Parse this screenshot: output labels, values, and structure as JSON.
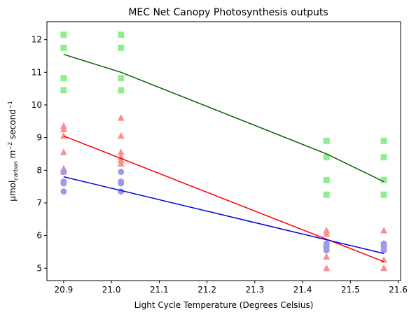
{
  "chart_data": {
    "type": "scatter",
    "title": "MEC Net Canopy Photosynthesis outputs",
    "xlabel": "Light Cycle Temperature (Degrees Celsius)",
    "ylabel": {
      "prefix": "μmol",
      "sub1": "carbon",
      "mid": " m",
      "sup1": "−2",
      "mid2": " second",
      "sup2": "−1"
    },
    "xlim": [
      20.865,
      21.605
    ],
    "ylim": [
      4.62,
      12.55
    ],
    "xticks": [
      "20.9",
      "21.0",
      "21.1",
      "21.2",
      "21.3",
      "21.4",
      "21.5",
      "21.6"
    ],
    "yticks": [
      "5",
      "6",
      "7",
      "8",
      "9",
      "10",
      "11",
      "12"
    ],
    "grid": false,
    "legend": "none",
    "series": [
      {
        "marker": "square",
        "color": "#90ee90",
        "line_color": "#006400",
        "points": [
          [
            20.9,
            12.15
          ],
          [
            20.9,
            11.75
          ],
          [
            20.9,
            10.82
          ],
          [
            20.9,
            10.45
          ],
          [
            21.02,
            12.15
          ],
          [
            21.02,
            11.75
          ],
          [
            21.02,
            10.82
          ],
          [
            21.02,
            10.45
          ],
          [
            21.45,
            8.9
          ],
          [
            21.45,
            8.4
          ],
          [
            21.45,
            7.7
          ],
          [
            21.45,
            7.25
          ],
          [
            21.57,
            8.9
          ],
          [
            21.57,
            8.4
          ],
          [
            21.57,
            7.7
          ],
          [
            21.57,
            7.25
          ]
        ],
        "line": [
          [
            20.9,
            11.55
          ],
          [
            21.02,
            11.0
          ],
          [
            21.45,
            8.5
          ],
          [
            21.57,
            7.65
          ]
        ]
      },
      {
        "marker": "triangle",
        "color": "#f89090",
        "line_color": "#ff0000",
        "points": [
          [
            20.9,
            9.35
          ],
          [
            20.9,
            9.25
          ],
          [
            20.9,
            9.05
          ],
          [
            20.9,
            8.55
          ],
          [
            20.9,
            8.05
          ],
          [
            20.9,
            7.95
          ],
          [
            21.02,
            9.6
          ],
          [
            21.02,
            9.05
          ],
          [
            21.02,
            8.55
          ],
          [
            21.02,
            8.4
          ],
          [
            21.02,
            8.3
          ],
          [
            21.02,
            8.2
          ],
          [
            21.45,
            6.15
          ],
          [
            21.45,
            6.05
          ],
          [
            21.45,
            5.75
          ],
          [
            21.45,
            5.35
          ],
          [
            21.45,
            5.0
          ],
          [
            21.57,
            6.15
          ],
          [
            21.57,
            5.75
          ],
          [
            21.57,
            5.25
          ],
          [
            21.57,
            5.0
          ]
        ],
        "line": [
          [
            20.9,
            9.05
          ],
          [
            21.57,
            5.2
          ]
        ]
      },
      {
        "marker": "circle",
        "color": "#9b9bea",
        "line_color": "#0000dd",
        "points": [
          [
            20.9,
            7.95
          ],
          [
            20.9,
            7.65
          ],
          [
            20.9,
            7.6
          ],
          [
            20.9,
            7.35
          ],
          [
            21.02,
            7.95
          ],
          [
            21.02,
            7.65
          ],
          [
            21.02,
            7.6
          ],
          [
            21.02,
            7.35
          ],
          [
            21.45,
            5.75
          ],
          [
            21.45,
            5.65
          ],
          [
            21.45,
            5.55
          ],
          [
            21.57,
            5.75
          ],
          [
            21.57,
            5.65
          ],
          [
            21.57,
            5.55
          ]
        ],
        "line": [
          [
            20.9,
            7.8
          ],
          [
            21.57,
            5.45
          ]
        ]
      }
    ]
  }
}
